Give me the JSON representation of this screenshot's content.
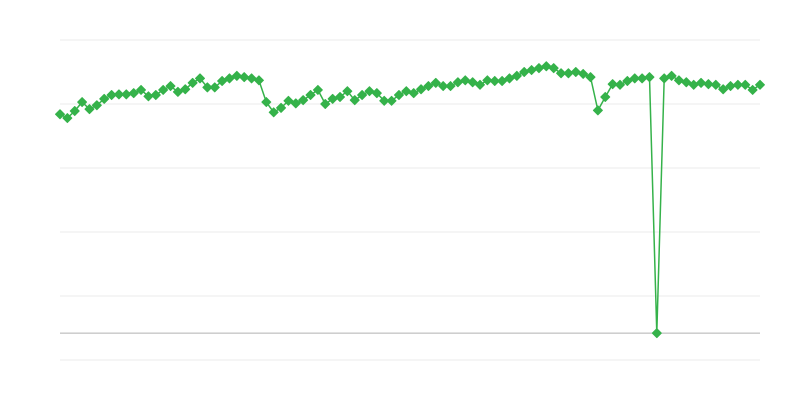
{
  "chart_data": {
    "type": "line",
    "title": "",
    "xlabel": "",
    "ylabel": "",
    "ylim": [
      -0.42,
      4.58
    ],
    "grid": true,
    "gridlines_y": [
      4.58,
      3.58,
      2.58,
      1.58,
      0.58,
      -0.42
    ],
    "baseline": 0,
    "legend": "none",
    "colors": {
      "series": "#35b24a",
      "grid": "#ebebeb",
      "baseline": "#b0b0b0"
    },
    "series": [
      {
        "marker": "diamond",
        "values": [
          3.42,
          3.36,
          3.47,
          3.61,
          3.5,
          3.56,
          3.66,
          3.72,
          3.73,
          3.73,
          3.75,
          3.8,
          3.7,
          3.72,
          3.8,
          3.86,
          3.77,
          3.81,
          3.91,
          3.98,
          3.84,
          3.84,
          3.94,
          3.98,
          4.02,
          4.0,
          3.98,
          3.95,
          3.61,
          3.45,
          3.52,
          3.63,
          3.59,
          3.64,
          3.72,
          3.8,
          3.58,
          3.66,
          3.69,
          3.78,
          3.64,
          3.72,
          3.78,
          3.75,
          3.63,
          3.63,
          3.72,
          3.78,
          3.75,
          3.81,
          3.86,
          3.91,
          3.86,
          3.86,
          3.92,
          3.95,
          3.92,
          3.88,
          3.95,
          3.94,
          3.94,
          3.98,
          4.02,
          4.08,
          4.11,
          4.14,
          4.17,
          4.14,
          4.06,
          4.06,
          4.08,
          4.05,
          4.0,
          3.48,
          3.69,
          3.89,
          3.88,
          3.94,
          3.98,
          3.98,
          4.0,
          0,
          3.98,
          4.02,
          3.95,
          3.92,
          3.88,
          3.91,
          3.89,
          3.88,
          3.81,
          3.86,
          3.88,
          3.88,
          3.8,
          3.88
        ]
      }
    ]
  }
}
